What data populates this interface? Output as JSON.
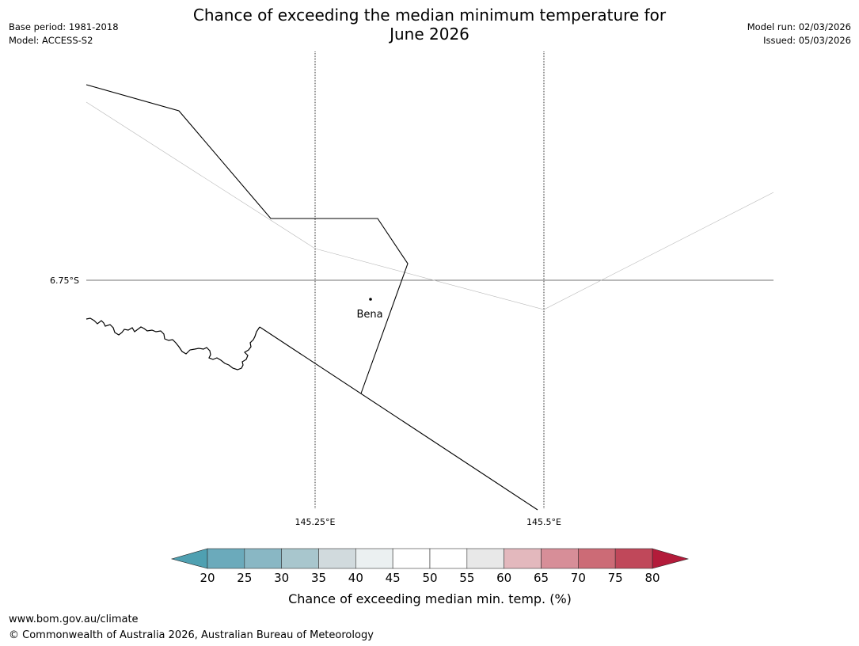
{
  "title": {
    "line1": "Chance of exceeding the median minimum temperature for",
    "line2": "June 2026"
  },
  "meta": {
    "base_period": "Base period: 1981-2018",
    "model": "Model: ACCESS-S2",
    "model_run": "Model run: 02/03/2026",
    "issued": "Issued: 05/03/2026"
  },
  "map": {
    "lat_label": "6.75°S",
    "lon_labels": [
      "145.25°E",
      "145.5°E"
    ],
    "place": {
      "name": "Bena"
    }
  },
  "colorbar": {
    "label": "Chance of exceeding median min. temp. (%)",
    "ticks": [
      "20",
      "25",
      "30",
      "35",
      "40",
      "45",
      "50",
      "55",
      "60",
      "65",
      "70",
      "75",
      "80"
    ],
    "bins": [
      {
        "range": "20-25",
        "color": "#6baabb"
      },
      {
        "range": "25-30",
        "color": "#89b7c4"
      },
      {
        "range": "30-35",
        "color": "#a8c6cd"
      },
      {
        "range": "35-40",
        "color": "#d1dadd"
      },
      {
        "range": "40-45",
        "color": "#ebf0f1"
      },
      {
        "range": "45-50",
        "color": "#ffffff"
      },
      {
        "range": "50-55",
        "color": "#ffffff"
      },
      {
        "range": "55-60",
        "color": "#e8e8e8"
      },
      {
        "range": "60-65",
        "color": "#e3b8bd"
      },
      {
        "range": "65-70",
        "color": "#d78e98"
      },
      {
        "range": "70-75",
        "color": "#cc6b76"
      },
      {
        "range": "75-80",
        "color": "#c0485a"
      }
    ],
    "under_color": "#4fa0b1",
    "over_color": "#b31b3a"
  },
  "footer": {
    "website": "www.bom.gov.au/climate",
    "copyright": "© Commonwealth of Australia 2026, Australian Bureau of Meteorology"
  }
}
